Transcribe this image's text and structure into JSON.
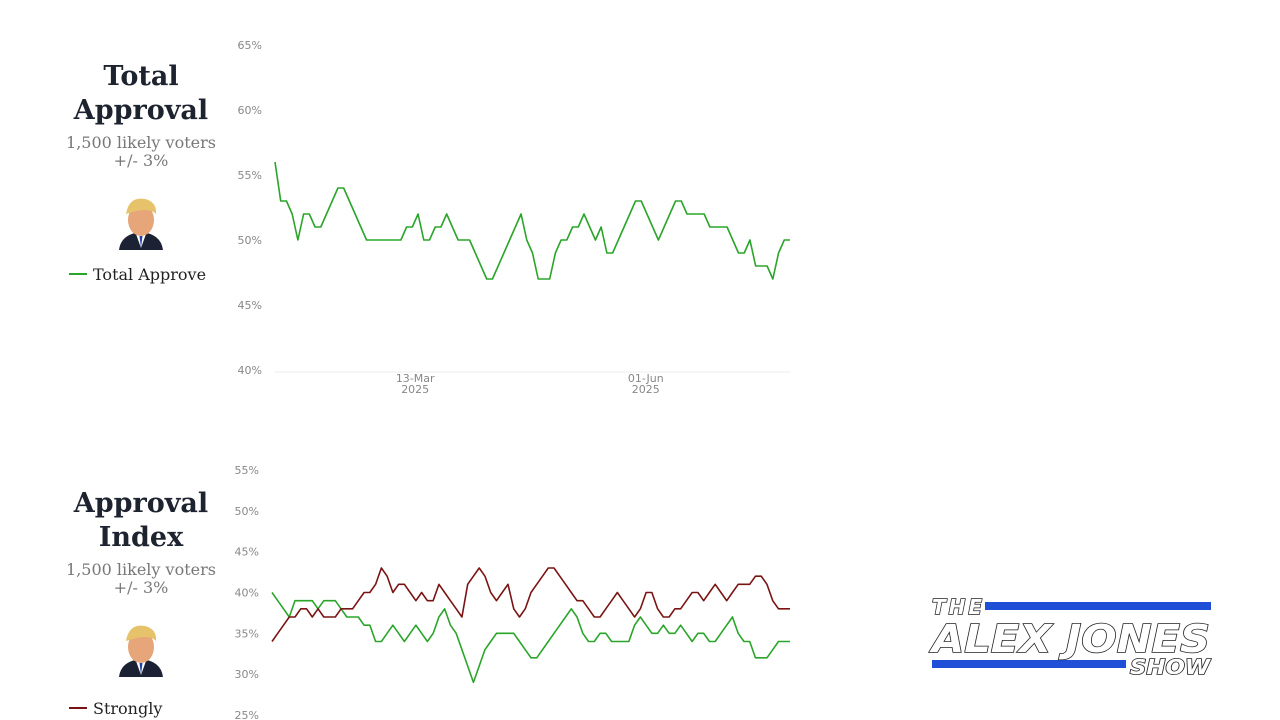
{
  "chart_data": [
    {
      "type": "line",
      "title": "Total Approval",
      "subtitle": [
        "1,500 likely voters",
        "+/- 3%"
      ],
      "xlim": [
        0,
        90
      ],
      "xticks": [
        {
          "value": 24.5,
          "label": [
            "13-Mar",
            "2025"
          ]
        },
        {
          "value": 64.8,
          "label": [
            "01-Jun",
            "2025"
          ]
        }
      ],
      "ylim": [
        40,
        65
      ],
      "yticks": [
        {
          "value": 40,
          "label": "40%"
        },
        {
          "value": 45,
          "label": "45%"
        },
        {
          "value": 50,
          "label": "50%"
        },
        {
          "value": 55,
          "label": "55%"
        },
        {
          "value": 60,
          "label": "60%"
        },
        {
          "value": 65,
          "label": "65%"
        }
      ],
      "series": [
        {
          "name": "Total Approve",
          "color": "#2aa52a",
          "values": [
            56,
            53,
            53,
            52,
            50,
            52,
            52,
            51,
            51,
            52,
            53,
            54,
            54,
            53,
            52,
            51,
            50,
            50,
            50,
            50,
            50,
            50,
            50,
            51,
            51,
            52,
            50,
            50,
            51,
            51,
            52,
            51,
            50,
            50,
            50,
            49,
            48,
            47,
            47,
            48,
            49,
            50,
            51,
            52,
            50,
            49,
            47,
            47,
            47,
            49,
            50,
            50,
            51,
            51,
            52,
            51,
            50,
            51,
            49,
            49,
            50,
            51,
            52,
            53,
            53,
            52,
            51,
            50,
            51,
            52,
            53,
            53,
            52,
            52,
            52,
            52,
            51,
            51,
            51,
            51,
            50,
            49,
            49,
            50,
            48,
            48,
            48,
            47,
            49,
            50,
            50
          ]
        }
      ]
    },
    {
      "type": "line",
      "title": "Approval Index",
      "subtitle": [
        "1,500 likely voters",
        "+/- 3%"
      ],
      "xlim": [
        0,
        90
      ],
      "ylim": [
        25,
        55
      ],
      "yticks": [
        {
          "value": 25,
          "label": "25%"
        },
        {
          "value": 30,
          "label": "30%"
        },
        {
          "value": 35,
          "label": "35%"
        },
        {
          "value": 40,
          "label": "40%"
        },
        {
          "value": 45,
          "label": "45%"
        },
        {
          "value": 50,
          "label": "50%"
        },
        {
          "value": 55,
          "label": "55%"
        }
      ],
      "series": [
        {
          "color": "#2aa52a",
          "values": [
            40,
            39,
            38,
            37,
            39,
            39,
            39,
            39,
            38,
            39,
            39,
            39,
            38,
            37,
            37,
            37,
            36,
            36,
            34,
            34,
            35,
            36,
            35,
            34,
            35,
            36,
            35,
            34,
            35,
            37,
            38,
            36,
            35,
            33,
            31,
            29,
            31,
            33,
            34,
            35,
            35,
            35,
            35,
            34,
            33,
            32,
            32,
            33,
            34,
            35,
            36,
            37,
            38,
            37,
            35,
            34,
            34,
            35,
            35,
            34,
            34,
            34,
            34,
            36,
            37,
            36,
            35,
            35,
            36,
            35,
            35,
            36,
            35,
            34,
            35,
            35,
            34,
            34,
            35,
            36,
            37,
            35,
            34,
            34,
            32,
            32,
            32,
            33,
            34,
            34,
            34
          ]
        },
        {
          "name": "Strongly",
          "color": "#7a1414",
          "values": [
            34,
            35,
            36,
            37,
            37,
            38,
            38,
            37,
            38,
            37,
            37,
            37,
            38,
            38,
            38,
            39,
            40,
            40,
            41,
            43,
            42,
            40,
            41,
            41,
            40,
            39,
            40,
            39,
            39,
            41,
            40,
            39,
            38,
            37,
            41,
            42,
            43,
            42,
            40,
            39,
            40,
            41,
            38,
            37,
            38,
            40,
            41,
            42,
            43,
            43,
            42,
            41,
            40,
            39,
            39,
            38,
            37,
            37,
            38,
            39,
            40,
            39,
            38,
            37,
            38,
            40,
            40,
            38,
            37,
            37,
            38,
            38,
            39,
            40,
            40,
            39,
            40,
            41,
            40,
            39,
            40,
            41,
            41,
            41,
            42,
            42,
            41,
            39,
            38,
            38,
            38
          ]
        }
      ]
    }
  ],
  "logo": {
    "line1": "THE",
    "line2": "ALEX JONES",
    "line3": "SHOW"
  }
}
